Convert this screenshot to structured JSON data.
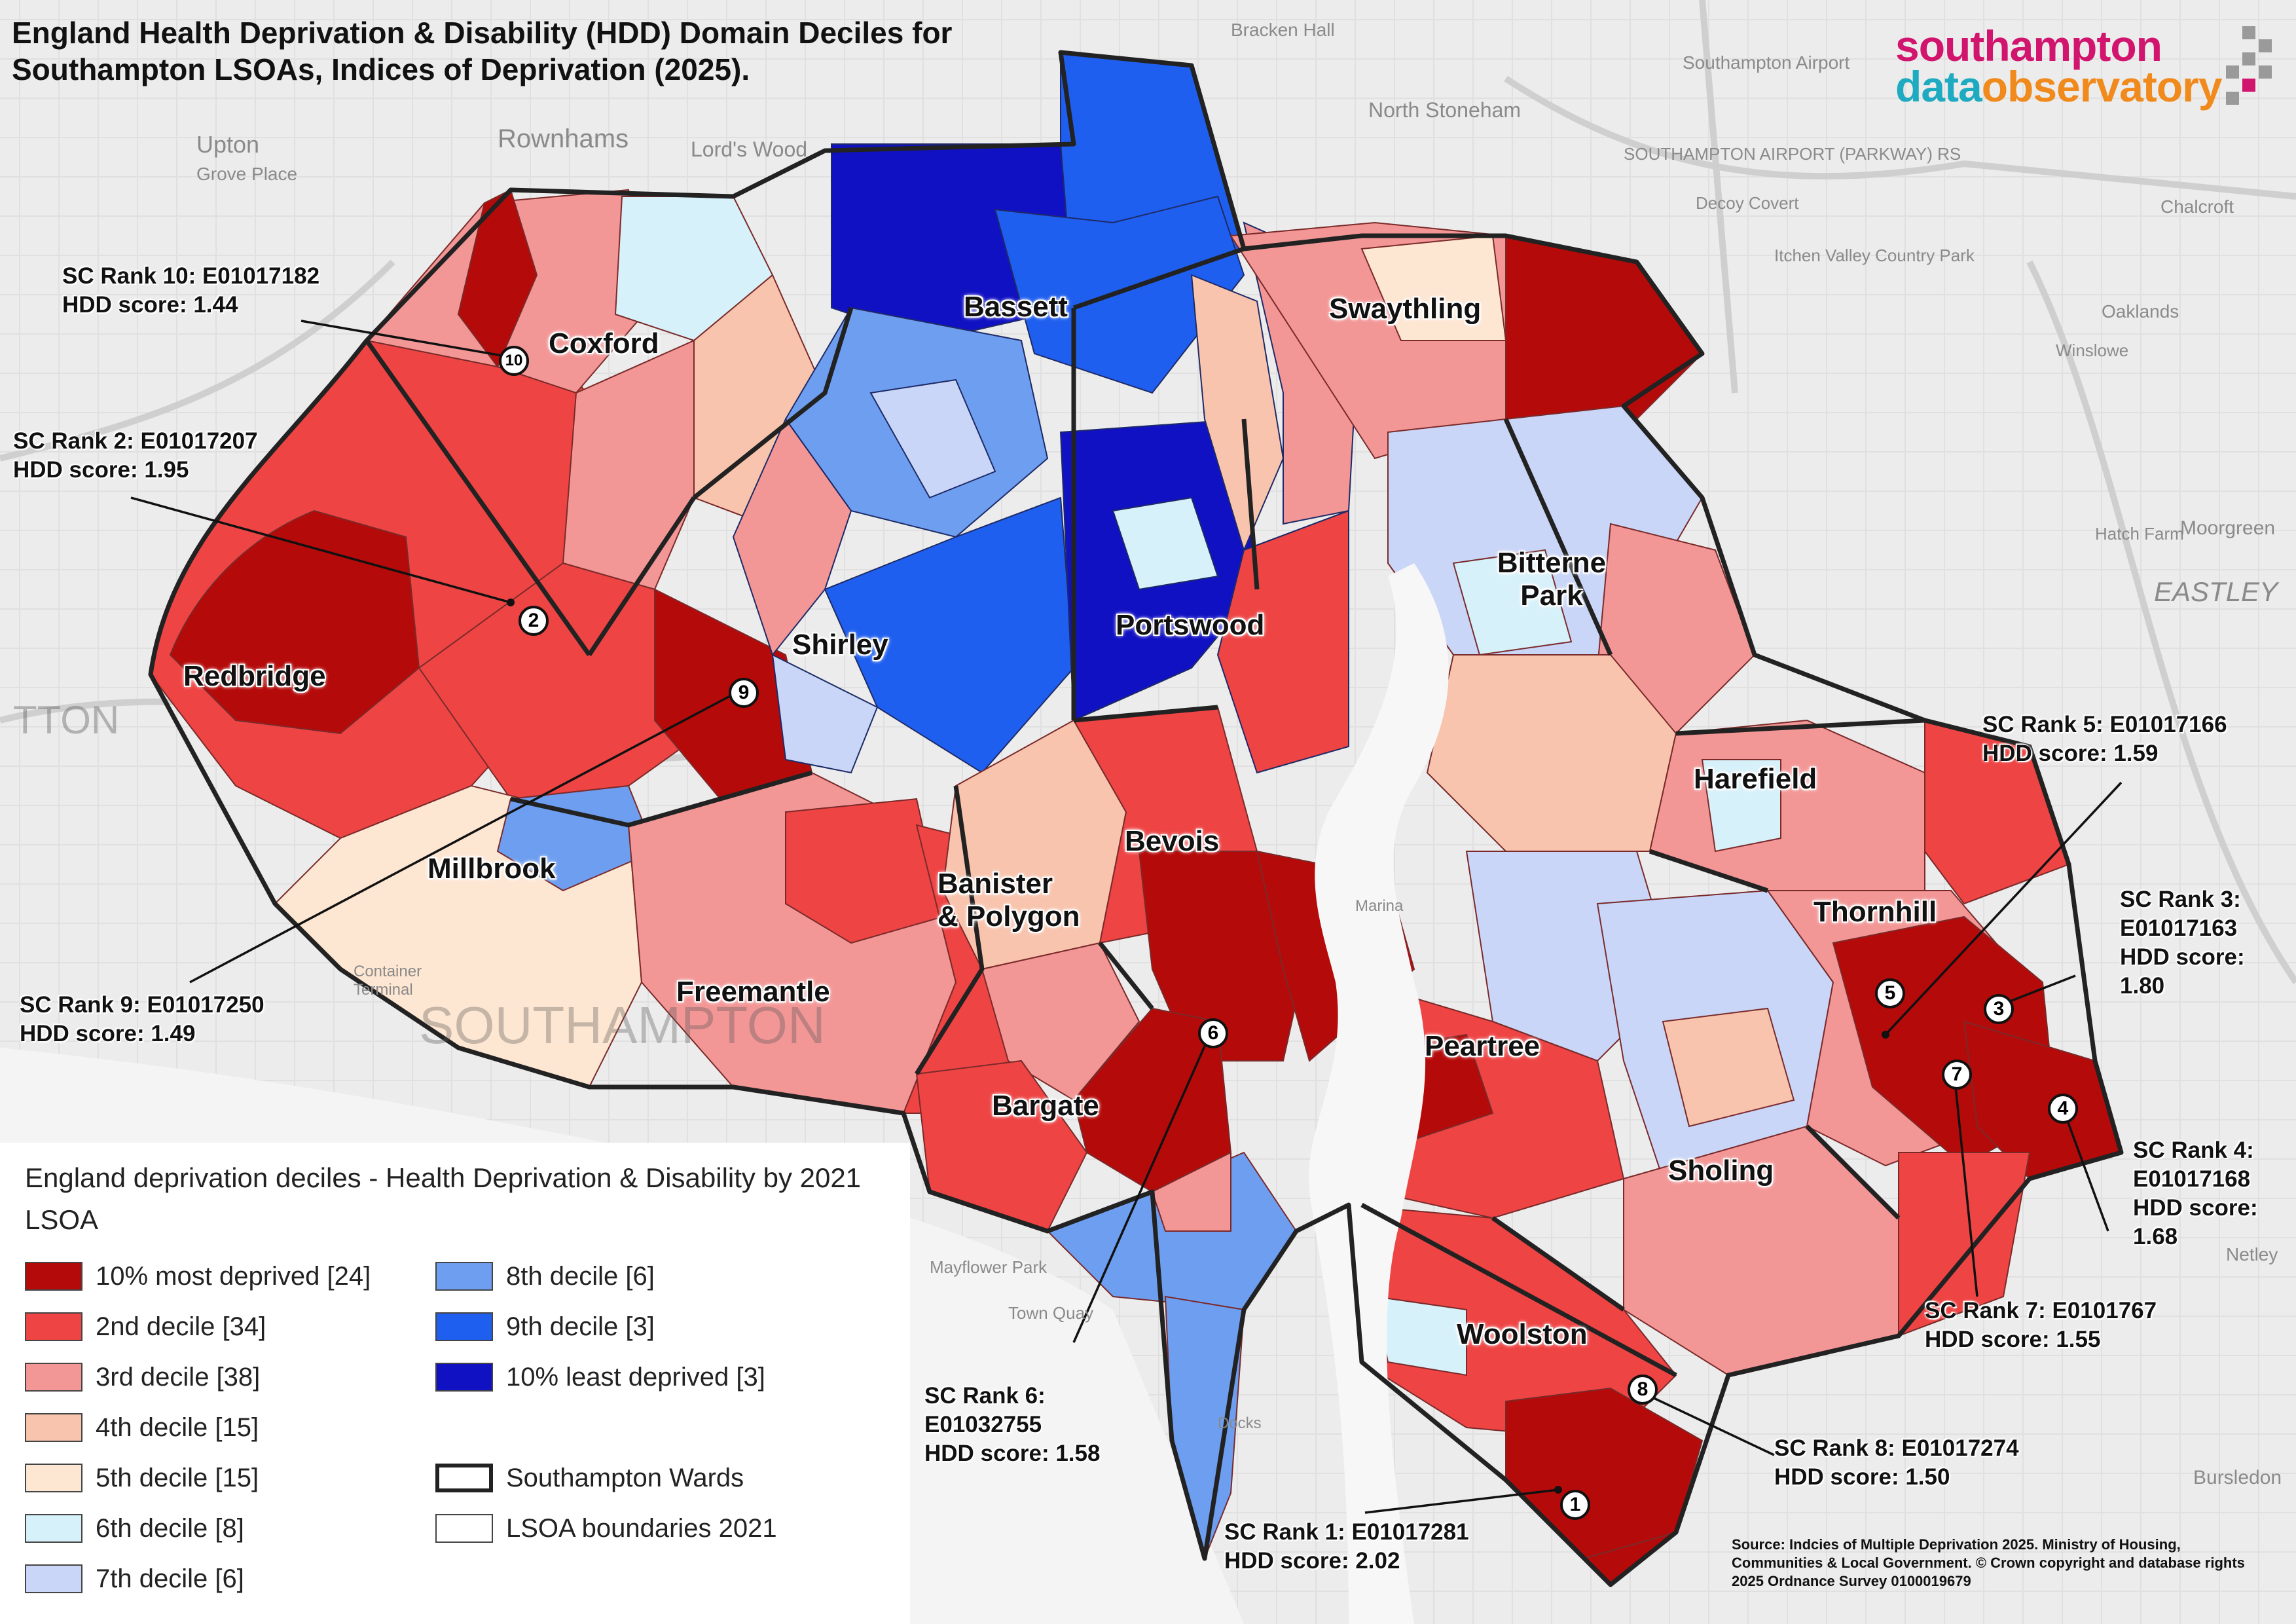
{
  "title": "England Health Deprivation & Disability (HDD) Domain Deciles for Southampton LSOAs, Indices of Deprivation (2025).",
  "logo": {
    "line1": "southampton",
    "line2a": "data",
    "line2b": "observatory"
  },
  "colors": {
    "d1": "#b50a0a",
    "d2": "#ee4444",
    "d3": "#f39696",
    "d4": "#f8c4ad",
    "d5": "#fde6d2",
    "d6": "#d7f1fa",
    "d7": "#c9d6f7",
    "d8": "#6e9ef0",
    "d9": "#1f5fef",
    "d10": "#1111c4",
    "basemap": "#eeeeee",
    "ward_boundary": "#222222"
  },
  "legend": {
    "title": "England deprivation deciles - Health Deprivation & Disability by 2021 LSOA",
    "items": [
      {
        "label": "10% most deprived [24]",
        "color": "#b50a0a"
      },
      {
        "label": "2nd decile [34]",
        "color": "#ee4444"
      },
      {
        "label": "3rd decile [38]",
        "color": "#f39696"
      },
      {
        "label": "4th decile [15]",
        "color": "#f8c4ad"
      },
      {
        "label": "5th decile [15]",
        "color": "#fde6d2"
      },
      {
        "label": "6th decile [8]",
        "color": "#d7f1fa"
      },
      {
        "label": "7th decile [6]",
        "color": "#c9d6f7"
      },
      {
        "label": "8th decile [6]",
        "color": "#6e9ef0"
      },
      {
        "label": "9th decile [3]",
        "color": "#1f5fef"
      },
      {
        "label": "10% least deprived [3]",
        "color": "#1111c4"
      },
      {
        "label": "Southampton Wards",
        "color": ""
      },
      {
        "label": "LSOA boundaries 2021",
        "color": ""
      }
    ]
  },
  "wards": [
    "Coxford",
    "Bassett",
    "Swaythling",
    "Redbridge",
    "Shirley",
    "Portswood",
    "Bitterne Park",
    "Harefield",
    "Millbrook",
    "Bevois",
    "Banister & Polygon",
    "Thornhill",
    "Freemantle",
    "Peartree",
    "Bargate",
    "Sholing",
    "Woolston"
  ],
  "callouts": [
    {
      "rank": "1",
      "lines": [
        "SC Rank 1: E01017281",
        "HDD score: 2.02"
      ]
    },
    {
      "rank": "2",
      "lines": [
        "SC Rank 2: E01017207",
        "HDD score: 1.95"
      ]
    },
    {
      "rank": "3",
      "lines": [
        "SC Rank 3:",
        "E01017163",
        "HDD score:",
        "1.80"
      ]
    },
    {
      "rank": "4",
      "lines": [
        "SC Rank 4:",
        "E01017168",
        "HDD score:",
        "1.68"
      ]
    },
    {
      "rank": "5",
      "lines": [
        "SC Rank 5: E01017166",
        "HDD score: 1.59"
      ]
    },
    {
      "rank": "6",
      "lines": [
        "SC Rank 6:",
        "E01032755",
        "HDD score: 1.58"
      ]
    },
    {
      "rank": "7",
      "lines": [
        "SC Rank 7: E0101767",
        "HDD score: 1.55"
      ]
    },
    {
      "rank": "8",
      "lines": [
        "SC Rank 8: E01017274",
        "HDD score: 1.50"
      ]
    },
    {
      "rank": "9",
      "lines": [
        "SC Rank 9: E01017250",
        "HDD score: 1.49"
      ]
    },
    {
      "rank": "10",
      "lines": [
        "SC Rank 10: E01017182",
        "HDD score: 1.44"
      ]
    }
  ],
  "basemap_labels": [
    "Rownhams",
    "Lord's Wood",
    "Upton",
    "Grove Place",
    "Bracken Hall",
    "Southampton Airport",
    "North Stoneham",
    "SOUTHAMPTON AIRPORT (PARKWAY) RS",
    "Decoy Covert",
    "Itchen Valley Country Park",
    "Chalcroft",
    "Oaklands",
    "Winslowe",
    "Moorgreen",
    "Hatch Farm",
    "EASTLEY",
    "Netley",
    "Bursledon",
    "Mayflower Park",
    "Town Quay",
    "SOUTHAMPTON",
    "TTON",
    "Container Terminal",
    "Docks",
    "Marina"
  ],
  "source": "Source: Indcies of Multiple Deprivation 2025. Ministry of Housing, Communities & Local Government. © Crown copyright and database rights 2025 Ordnance Survey 0100019679"
}
